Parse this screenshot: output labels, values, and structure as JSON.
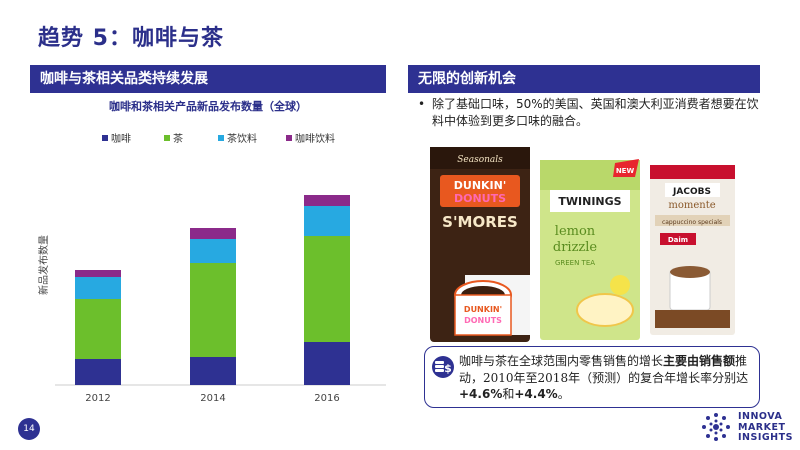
{
  "slide": {
    "title": "趋势 5：咖啡与茶",
    "page_number": "14"
  },
  "left_section": {
    "header": "咖啡与茶相关品类持续发展"
  },
  "right_section": {
    "header": "无限的创新机会",
    "bullet": "除了基础口味，50%的美国、英国和澳大利亚消费者想要在饮料中体验到更多口味的融合。"
  },
  "callout": {
    "icon": "money-stack-icon",
    "text_1": "咖啡与茶在全球范围内零售销售的增长",
    "text_bold_1": "主要由销售额",
    "text_2": "推动，2010年至2018年（预测）的复合年增长率分别达",
    "text_bold_2": "+4.6%",
    "text_3": "和",
    "text_bold_3": "+4.4%",
    "text_4": "。"
  },
  "logo": {
    "line1": "INNOVA",
    "line2": "MARKET",
    "line3": "INSIGHTS"
  },
  "products": {
    "dunkin": {
      "line1": "DUNKIN'",
      "line2": "DONUTS",
      "flavor": "S'MORES",
      "top": "Seasonals"
    },
    "twinings": {
      "brand": "TWININGS",
      "line1": "lemon",
      "line2": "drizzle",
      "line3": "GREEN TEA",
      "badge": "NEW"
    },
    "jacobs": {
      "brand": "JACOBS",
      "line1": "momente",
      "line2": "cappuccino specials",
      "sub": "Daim"
    }
  },
  "chart_data": {
    "type": "bar",
    "stacked": true,
    "title": "咖啡和茶相关产品新品发布数量（全球）",
    "xlabel": "",
    "ylabel": "新品发布数量",
    "categories": [
      "2012",
      "2014",
      "2016"
    ],
    "series": [
      {
        "name": "咖啡",
        "color": "#2e3192",
        "values": [
          26,
          28,
          43
        ]
      },
      {
        "name": "茶",
        "color": "#6cbf2c",
        "values": [
          60,
          94,
          106
        ]
      },
      {
        "name": "茶饮料",
        "color": "#27a9e1",
        "values": [
          22,
          24,
          30
        ]
      },
      {
        "name": "咖啡饮料",
        "color": "#8b2a8a",
        "values": [
          7,
          11,
          11
        ]
      }
    ],
    "ylim": [
      0,
      230
    ],
    "grid": false,
    "legend": "top"
  }
}
